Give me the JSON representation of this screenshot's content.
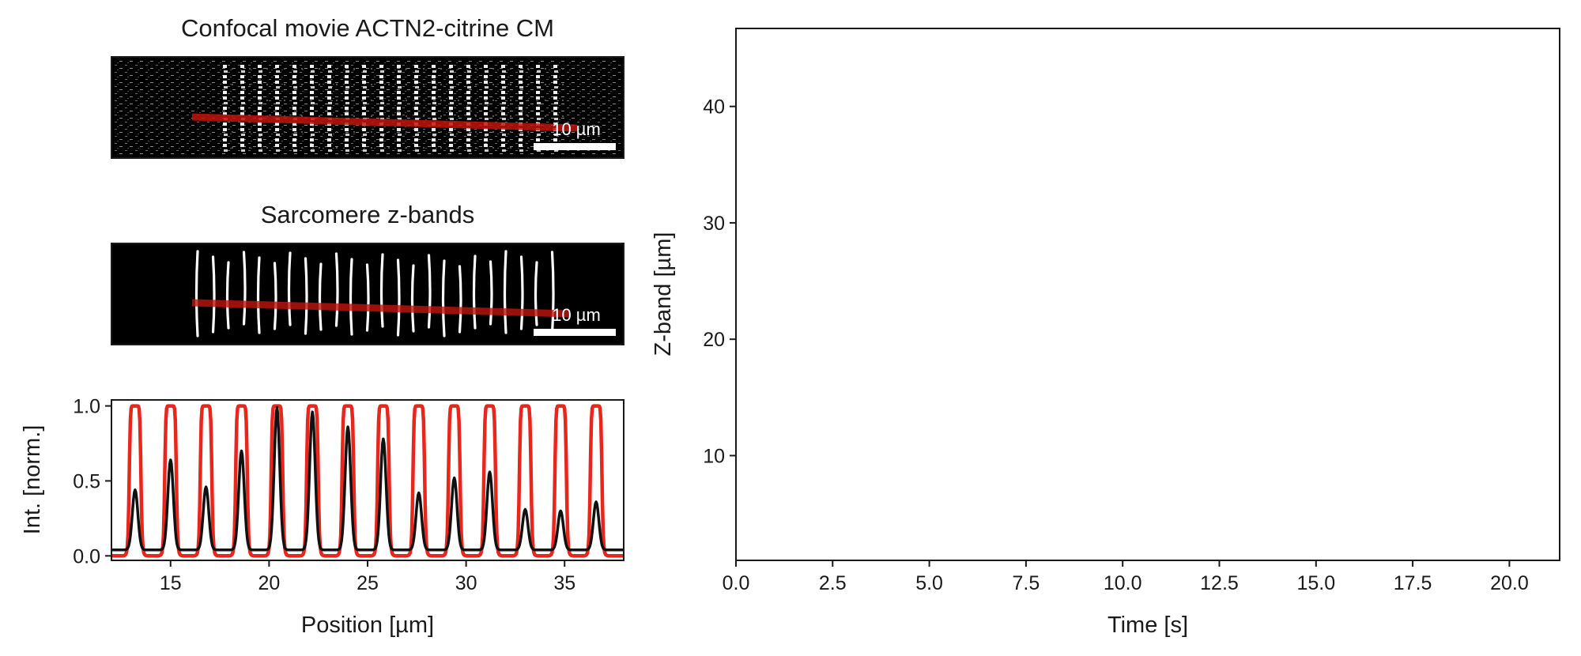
{
  "colors": {
    "sarcomere_profile": "#e8261c",
    "intensity_profile": "#111111",
    "line_overlay": "#c0140c",
    "axes": "#1a1a1a",
    "image_background": "#000000",
    "scale_bar": "#ffffff"
  },
  "panels": {
    "confocal": {
      "title": "Confocal movie ACTN2-citrine CM",
      "scalebar_label": "10 µm"
    },
    "zbands": {
      "title": "Sarcomere z-bands",
      "scalebar_label": "10 µm"
    }
  },
  "chart_data": [
    {
      "type": "line",
      "xlabel": "Position [µm]",
      "ylabel": "Int. [norm.]",
      "xlim": [
        12,
        38
      ],
      "ylim": [
        -0.03,
        1.04
      ],
      "xticks": [
        15,
        20,
        25,
        30,
        35
      ],
      "yticks": [
        0.0,
        0.5,
        1.0
      ],
      "xtick_labels": [
        "15",
        "20",
        "25",
        "30",
        "35"
      ],
      "ytick_labels": [
        "0.0",
        "0.5",
        "1.0"
      ],
      "grid": false,
      "series": [
        {
          "role": "z-band profile",
          "peak_positions": [
            13.2,
            15.0,
            16.8,
            18.6,
            20.4,
            22.2,
            24.0,
            25.8,
            27.6,
            29.4,
            31.2,
            33.0,
            34.8,
            36.6
          ],
          "peak_values": [
            1.0,
            1.0,
            1.0,
            1.0,
            1.0,
            1.0,
            1.0,
            1.0,
            1.0,
            1.0,
            1.0,
            1.0,
            1.0,
            1.0
          ],
          "baseline": 0.0
        },
        {
          "role": "intensity profile",
          "peak_positions": [
            13.2,
            15.0,
            16.8,
            18.6,
            20.4,
            22.2,
            24.0,
            25.8,
            27.6,
            29.4,
            31.2,
            33.0,
            34.8,
            36.6
          ],
          "peak_values": [
            0.4,
            0.6,
            0.42,
            0.66,
            0.95,
            0.92,
            0.82,
            0.74,
            0.38,
            0.48,
            0.52,
            0.27,
            0.26,
            0.32
          ],
          "baseline": 0.04
        }
      ]
    },
    {
      "type": "scatter",
      "xlabel": "Time [s]",
      "ylabel": "Z-band [µm]",
      "xlim": [
        0,
        21.3
      ],
      "ylim": [
        1,
        46.7
      ],
      "xticks": [
        0.0,
        2.5,
        5.0,
        7.5,
        10.0,
        12.5,
        15.0,
        17.5,
        20.0
      ],
      "yticks": [
        10,
        20,
        30,
        40
      ],
      "xtick_labels": [
        "0.0",
        "2.5",
        "5.0",
        "7.5",
        "10.0",
        "12.5",
        "15.0",
        "17.5",
        "20.0"
      ],
      "ytick_labels": [
        "10",
        "20",
        "30",
        "40"
      ],
      "grid": false,
      "series": []
    }
  ]
}
